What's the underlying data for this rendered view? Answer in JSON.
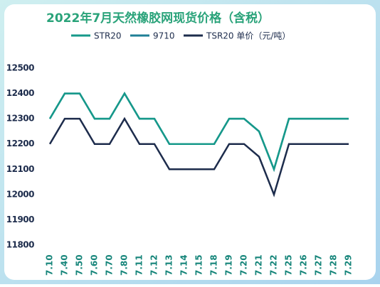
{
  "chart_data": {
    "type": "line",
    "title": "2022年7月天然橡胶网现货价格（含税）",
    "categories": [
      "7.10",
      "7.40",
      "7.50",
      "7.60",
      "7.70",
      "7.80",
      "7.11",
      "7.12",
      "7.13",
      "7.14",
      "7.15",
      "7.18",
      "7.19",
      "7.20",
      "7.21",
      "7.22",
      "7.25",
      "7.26",
      "7.27",
      "7.28",
      "7.29"
    ],
    "series": [
      {
        "name": "STR20",
        "color": "#16998a",
        "values": [
          12300,
          12400,
          12400,
          12300,
          12300,
          12400,
          12300,
          12300,
          12200,
          12200,
          12200,
          12200,
          12300,
          12300,
          12250,
          12100,
          12300,
          12300,
          12300,
          12300,
          12300
        ]
      },
      {
        "name": "9710",
        "color": "#1f7f96",
        "values": [
          12300,
          12400,
          12400,
          12300,
          12300,
          12400,
          12300,
          12300,
          12200,
          12200,
          12200,
          12200,
          12300,
          12300,
          12250,
          12100,
          12300,
          12300,
          12300,
          12300,
          12300
        ]
      },
      {
        "name": "TSR20 单价（元/吨）",
        "color": "#1d2c4c",
        "values": [
          12200,
          12300,
          12300,
          12200,
          12200,
          12300,
          12200,
          12200,
          12100,
          12100,
          12100,
          12100,
          12200,
          12200,
          12150,
          12000,
          12200,
          12200,
          12200,
          12200,
          12200
        ]
      }
    ],
    "ylim": [
      11800,
      12500
    ],
    "yticks": [
      11800,
      11900,
      12000,
      12100,
      12200,
      12300,
      12400,
      12500
    ]
  }
}
